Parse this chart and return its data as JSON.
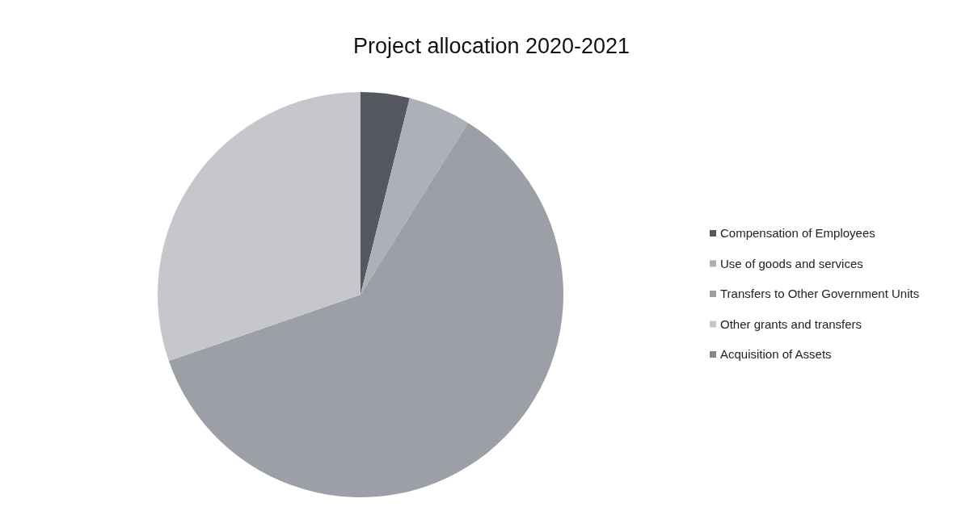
{
  "chart_data": {
    "type": "pie",
    "title": "Project allocation 2020-2021",
    "categories": [
      "Compensation of Employees",
      "Use of goods and services",
      "Transfers to Other Government Units",
      "Other grants and transfers",
      "Acquisition of Assets"
    ],
    "values": [
      3.9,
      5,
      60.8,
      30.3,
      0
    ],
    "colors": [
      "#55585f",
      "#aeb0b7",
      "#9d9fa7",
      "#c5c7cd",
      "#85878f"
    ],
    "legend": "right"
  }
}
